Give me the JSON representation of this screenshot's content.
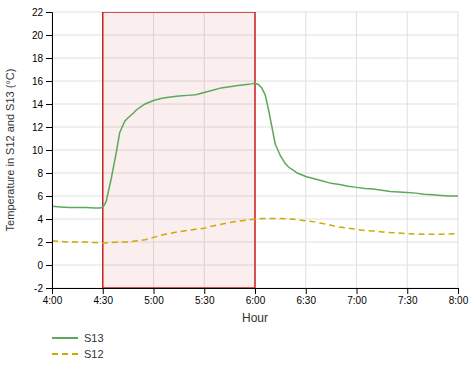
{
  "chart_data": {
    "type": "line",
    "xlabel": "Hour",
    "ylabel": "Temperature in S12 and S13 (°C)",
    "xlim": [
      240,
      480
    ],
    "ylim": [
      -2,
      22
    ],
    "xticks": [
      {
        "value": 240,
        "label": "4:00"
      },
      {
        "value": 270,
        "label": "4:30"
      },
      {
        "value": 300,
        "label": "5:00"
      },
      {
        "value": 330,
        "label": "5:30"
      },
      {
        "value": 360,
        "label": "6:00"
      },
      {
        "value": 390,
        "label": "6:30"
      },
      {
        "value": 420,
        "label": "7:00"
      },
      {
        "value": 450,
        "label": "7:30"
      },
      {
        "value": 480,
        "label": "8:00"
      }
    ],
    "yticks": [
      -2,
      0,
      2,
      4,
      6,
      8,
      10,
      12,
      14,
      16,
      18,
      20,
      22
    ],
    "grid": true,
    "legend": "bottom",
    "highlight": {
      "x": [
        270,
        360
      ],
      "color": "#cc2222"
    },
    "series": [
      {
        "name": "S13",
        "color": "#5aaa5a",
        "line_style": "solid",
        "x": [
          240,
          245,
          250,
          255,
          260,
          265,
          268,
          270,
          272,
          275,
          278,
          280,
          283,
          285,
          288,
          290,
          295,
          300,
          305,
          310,
          315,
          320,
          325,
          330,
          335,
          340,
          345,
          350,
          355,
          358,
          360,
          362,
          364,
          366,
          368,
          370,
          372,
          375,
          378,
          380,
          383,
          385,
          390,
          395,
          400,
          405,
          410,
          415,
          420,
          425,
          430,
          435,
          440,
          445,
          450,
          455,
          460,
          465,
          470,
          475,
          480
        ],
        "values": [
          5.1,
          5.05,
          5.0,
          5.0,
          5.0,
          4.95,
          4.95,
          5.0,
          5.5,
          7.5,
          9.8,
          11.5,
          12.5,
          12.8,
          13.2,
          13.5,
          14.0,
          14.3,
          14.5,
          14.6,
          14.7,
          14.75,
          14.8,
          15.0,
          15.2,
          15.4,
          15.5,
          15.6,
          15.7,
          15.75,
          15.8,
          15.7,
          15.4,
          14.8,
          13.5,
          12.0,
          10.5,
          9.5,
          8.8,
          8.5,
          8.2,
          8.0,
          7.7,
          7.5,
          7.3,
          7.1,
          7.0,
          6.85,
          6.75,
          6.65,
          6.6,
          6.5,
          6.4,
          6.35,
          6.3,
          6.25,
          6.15,
          6.1,
          6.05,
          6.0,
          6.0
        ]
      },
      {
        "name": "S12",
        "color": "#ccaa00",
        "line_style": "dashed",
        "x": [
          240,
          245,
          250,
          255,
          260,
          265,
          270,
          275,
          280,
          285,
          290,
          295,
          300,
          305,
          310,
          315,
          320,
          325,
          330,
          335,
          340,
          345,
          350,
          355,
          360,
          365,
          370,
          375,
          380,
          385,
          390,
          395,
          400,
          405,
          410,
          415,
          420,
          425,
          430,
          435,
          440,
          445,
          450,
          455,
          460,
          465,
          470,
          475,
          480
        ],
        "values": [
          2.1,
          2.05,
          2.0,
          2.0,
          2.0,
          1.95,
          1.9,
          1.95,
          2.0,
          2.0,
          2.1,
          2.2,
          2.4,
          2.6,
          2.75,
          2.9,
          3.0,
          3.1,
          3.2,
          3.4,
          3.55,
          3.7,
          3.8,
          3.9,
          4.0,
          4.05,
          4.05,
          4.05,
          4.0,
          3.95,
          3.85,
          3.75,
          3.6,
          3.45,
          3.3,
          3.2,
          3.1,
          3.0,
          2.95,
          2.88,
          2.82,
          2.78,
          2.72,
          2.7,
          2.68,
          2.67,
          2.68,
          2.7,
          2.72
        ]
      }
    ]
  }
}
